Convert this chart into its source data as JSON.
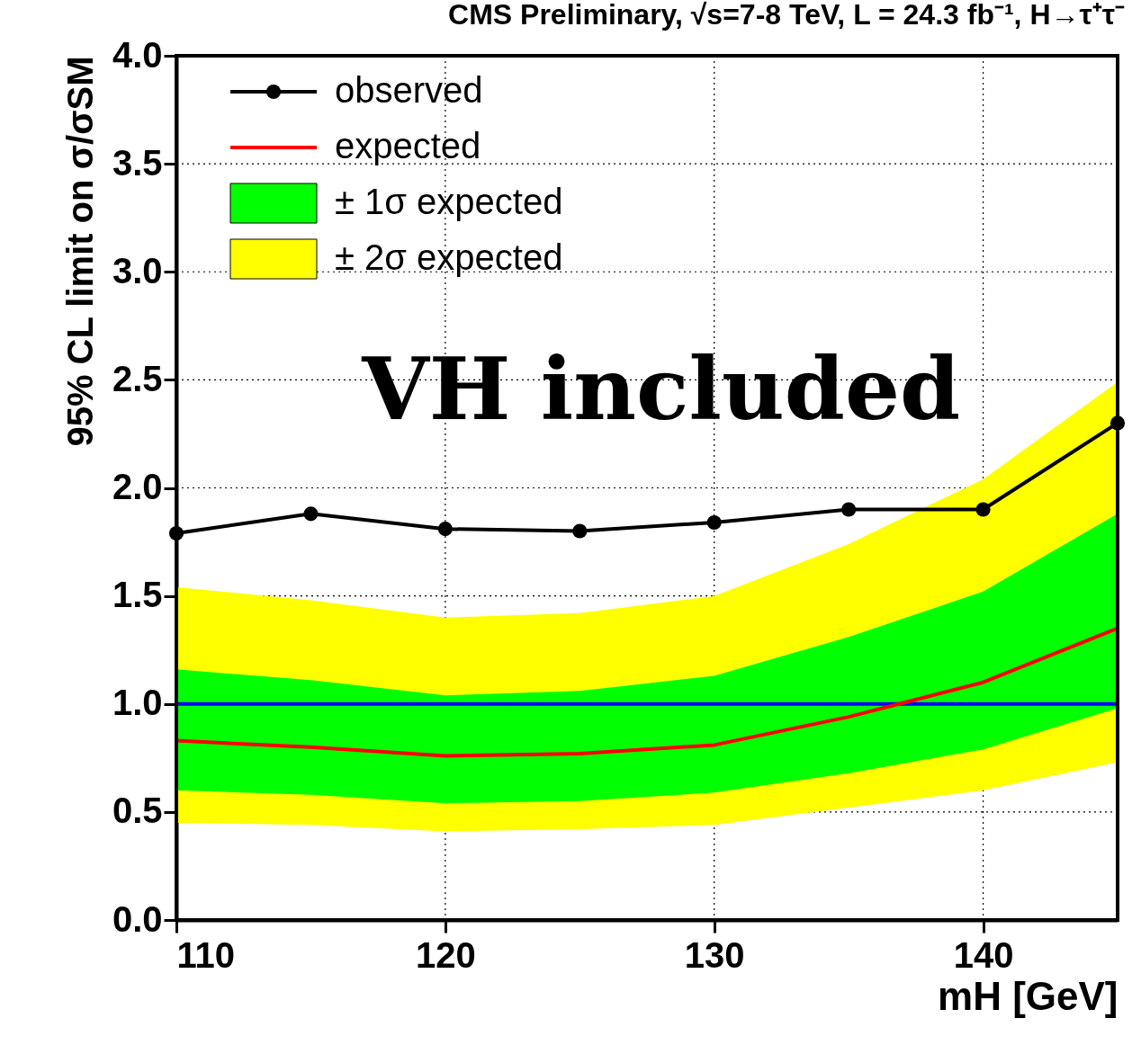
{
  "chart_data": {
    "type": "line",
    "title": "CMS Preliminary, √s=7-8 TeV, L = 24.3 fb⁻¹, H→τ⁺τ⁻",
    "xlabel": "mH [GeV]",
    "ylabel": "95% CL limit on σ/σSM",
    "x": [
      110,
      115,
      120,
      125,
      130,
      135,
      140,
      145
    ],
    "series": [
      {
        "name": "± 2σ expected",
        "type": "area",
        "color": "#ffff00",
        "values": [
          null,
          null,
          null,
          null,
          null,
          null,
          null,
          null
        ],
        "lower": [
          0.45,
          0.44,
          0.41,
          0.42,
          0.44,
          0.52,
          0.6,
          0.73
        ],
        "upper": [
          1.54,
          1.48,
          1.4,
          1.42,
          1.5,
          1.74,
          2.04,
          2.49
        ]
      },
      {
        "name": "± 1σ expected",
        "type": "area",
        "color": "#00ff00",
        "values": [
          null,
          null,
          null,
          null,
          null,
          null,
          null,
          null
        ],
        "lower": [
          0.6,
          0.58,
          0.54,
          0.55,
          0.59,
          0.68,
          0.79,
          0.98
        ],
        "upper": [
          1.16,
          1.11,
          1.04,
          1.06,
          1.13,
          1.31,
          1.52,
          1.88
        ]
      },
      {
        "name": "expected",
        "color": "#ff0000",
        "marker": "none",
        "values": [
          0.83,
          0.8,
          0.76,
          0.77,
          0.81,
          0.94,
          1.1,
          1.35
        ]
      },
      {
        "name": "observed",
        "color": "#000000",
        "marker": "circle",
        "values": [
          1.79,
          1.88,
          1.81,
          1.8,
          1.84,
          1.9,
          1.9,
          2.3
        ]
      }
    ],
    "ref_lines": [
      {
        "axis": "y",
        "value": 1.0,
        "color": "#0000ff"
      }
    ],
    "annotations": [
      "VH included"
    ],
    "xlim": [
      110,
      145
    ],
    "ylim": [
      0,
      4
    ],
    "xticks": [
      110,
      120,
      130,
      140
    ],
    "yticks": [
      {
        "value": 0,
        "label": "0.0"
      },
      {
        "value": 0.5,
        "label": "0.5"
      },
      {
        "value": 1,
        "label": "1.0"
      },
      {
        "value": 1.5,
        "label": "1.5"
      },
      {
        "value": 2,
        "label": "2.0"
      },
      {
        "value": 2.5,
        "label": "2.5"
      },
      {
        "value": 3,
        "label": "3.0"
      },
      {
        "value": 3.5,
        "label": "3.5"
      },
      {
        "value": 4,
        "label": "4.0"
      }
    ],
    "grid": true,
    "legend": "top left"
  }
}
